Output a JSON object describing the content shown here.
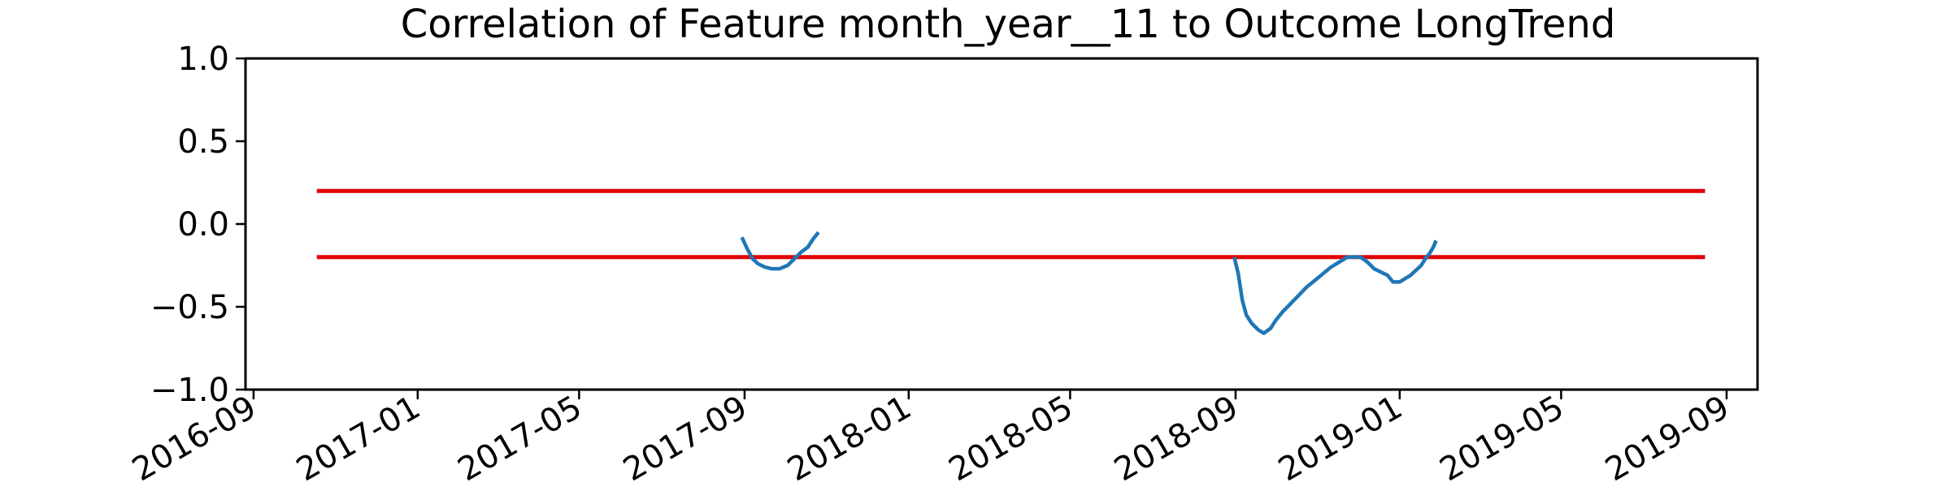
{
  "chart_data": {
    "type": "line",
    "title": "Correlation of Feature month_year__11 to Outcome LongTrend",
    "xlabel": "",
    "ylabel": "",
    "x_axis_type": "date",
    "xlim": [
      "2016-08-26",
      "2019-09-24"
    ],
    "ylim": [
      -1.0,
      1.0
    ],
    "x_ticks": [
      "2016-09",
      "2017-01",
      "2017-05",
      "2017-09",
      "2018-01",
      "2018-05",
      "2018-09",
      "2019-01",
      "2019-05",
      "2019-09"
    ],
    "y_ticks": [
      1.0,
      0.5,
      0.0,
      -0.5,
      -1.0
    ],
    "y_tick_labels": [
      "1.0",
      "0.5",
      "0.0",
      "−0.5",
      "−1.0"
    ],
    "grid": false,
    "legend": "none",
    "colors": {
      "series": "#1f77b4",
      "threshold": "#e00000",
      "axis": "#000000"
    },
    "threshold_lines": [
      {
        "y": 0.2,
        "x_start": "2016-10-18",
        "x_end": "2019-08-16"
      },
      {
        "y": -0.2,
        "x_start": "2016-10-18",
        "x_end": "2019-08-16"
      }
    ],
    "series": [
      {
        "segments": [
          {
            "x": [
              "2017-08-30",
              "2017-09-03",
              "2017-09-07",
              "2017-09-11",
              "2017-09-16",
              "2017-09-21",
              "2017-09-27",
              "2017-10-03",
              "2017-10-08",
              "2017-10-13",
              "2017-10-18",
              "2017-10-22",
              "2017-10-26"
            ],
            "y": [
              -0.08,
              -0.15,
              -0.21,
              -0.24,
              -0.26,
              -0.27,
              -0.27,
              -0.25,
              -0.21,
              -0.17,
              -0.14,
              -0.09,
              -0.05
            ]
          },
          {
            "x": [
              "2018-08-31",
              "2018-09-03",
              "2018-09-06",
              "2018-09-09",
              "2018-09-13",
              "2018-09-18",
              "2018-09-22",
              "2018-09-27",
              "2018-10-01",
              "2018-10-06",
              "2018-10-12",
              "2018-10-18",
              "2018-10-24",
              "2018-10-30",
              "2018-11-05",
              "2018-11-11",
              "2018-11-17",
              "2018-11-23",
              "2018-11-28",
              "2018-12-03",
              "2018-12-08",
              "2018-12-13",
              "2018-12-18",
              "2018-12-23",
              "2018-12-27",
              "2019-01-01",
              "2019-01-05",
              "2019-01-09",
              "2019-01-13",
              "2019-01-17",
              "2019-01-20",
              "2019-01-23",
              "2019-01-26",
              "2019-01-28"
            ],
            "y": [
              -0.2,
              -0.3,
              -0.46,
              -0.55,
              -0.6,
              -0.64,
              -0.66,
              -0.63,
              -0.58,
              -0.53,
              -0.48,
              -0.43,
              -0.38,
              -0.34,
              -0.3,
              -0.26,
              -0.23,
              -0.2,
              -0.2,
              -0.2,
              -0.23,
              -0.27,
              -0.29,
              -0.31,
              -0.35,
              -0.35,
              -0.33,
              -0.31,
              -0.28,
              -0.25,
              -0.21,
              -0.18,
              -0.14,
              -0.1
            ]
          }
        ]
      }
    ]
  }
}
